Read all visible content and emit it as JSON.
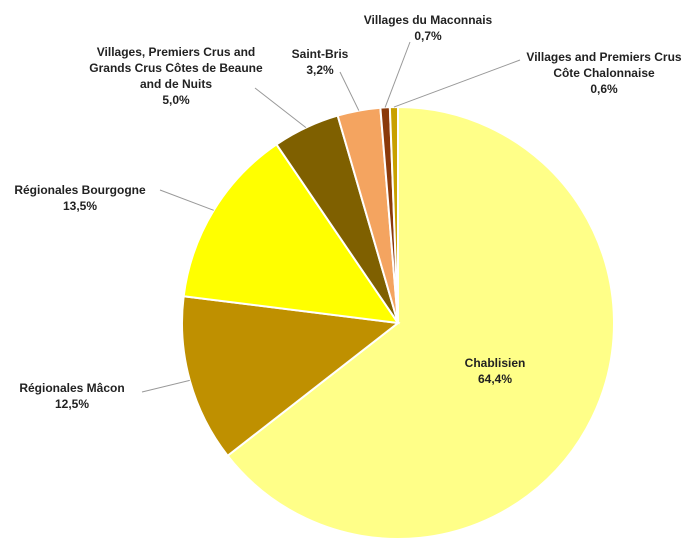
{
  "chart_data": {
    "type": "pie",
    "categories": [
      "Chablisien",
      "Régionales Mâcon",
      "Régionales Bourgogne",
      "Villages, Premiers Crus and Grands Crus Côtes de Beaune and de Nuits",
      "Saint-Bris",
      "Villages du Maconnais",
      "Villages and Premiers Crus Côte Chalonnaise"
    ],
    "values": [
      64.4,
      12.5,
      13.5,
      5.0,
      3.2,
      0.7,
      0.6
    ],
    "value_labels": [
      "64,4%",
      "12,5%",
      "13,5%",
      "5,0%",
      "3,2%",
      "0,7%",
      "0,6%"
    ],
    "colors": [
      "#ffff88",
      "#bf9000",
      "#ffff00",
      "#7f6000",
      "#f4a460",
      "#8b3a0a",
      "#c8a000"
    ]
  }
}
